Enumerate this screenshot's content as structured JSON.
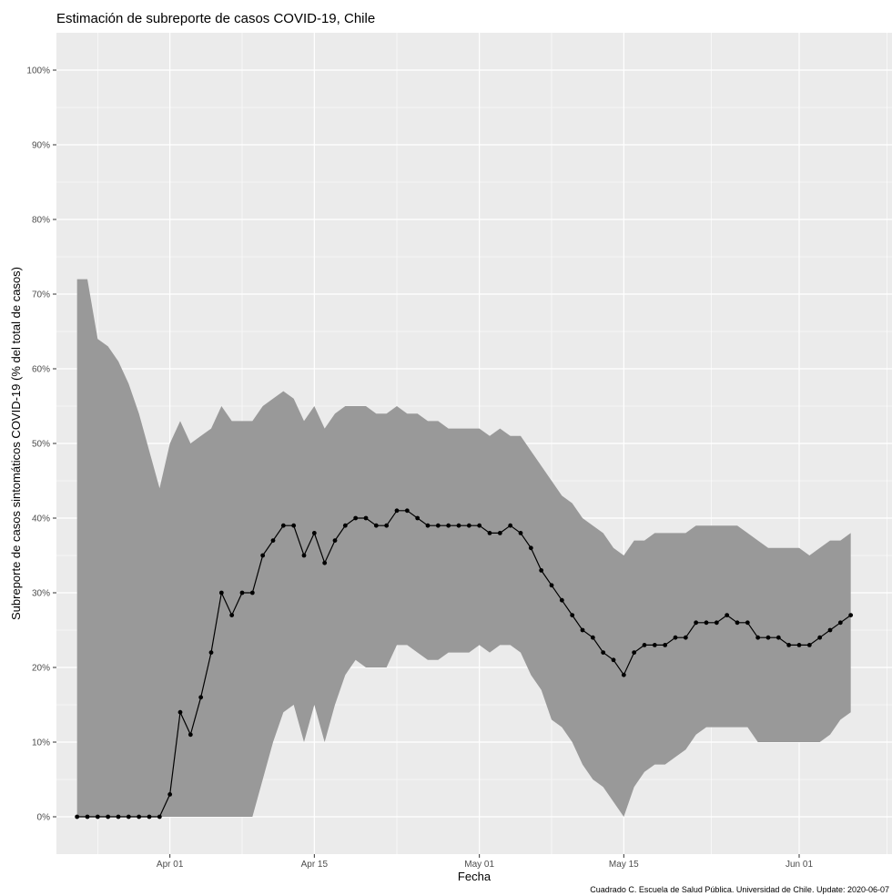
{
  "chart_data": {
    "type": "line",
    "title": "Estimación de subreporte de casos COVID-19, Chile",
    "xlabel": "Fecha",
    "ylabel": "Subreporte de casos sintomáticos COVID-19 (% del total de casos)",
    "caption": "Cuadrado C. Escuela de Salud Pública. Universidad de Chile. Update: 2020-06-07",
    "x_start": "2020-03-23",
    "x_end": "2020-06-06",
    "xlim": [
      "2020-03-21",
      "2020-06-10"
    ],
    "ylim": [
      -5,
      105
    ],
    "grid": true,
    "legend": "none",
    "colors": {
      "panel": "#ebebeb",
      "grid": "#ffffff",
      "ribbon": "#999999",
      "line": "#000000"
    },
    "x_ticks": [
      {
        "date": "2020-04-01",
        "label": "Apr 01"
      },
      {
        "date": "2020-04-15",
        "label": "Apr 15"
      },
      {
        "date": "2020-05-01",
        "label": "May 01"
      },
      {
        "date": "2020-05-15",
        "label": "May 15"
      },
      {
        "date": "2020-06-01",
        "label": "Jun 01"
      }
    ],
    "y_ticks": [
      {
        "value": 0,
        "label": "0%"
      },
      {
        "value": 10,
        "label": "10%"
      },
      {
        "value": 20,
        "label": "20%"
      },
      {
        "value": 30,
        "label": "30%"
      },
      {
        "value": 40,
        "label": "40%"
      },
      {
        "value": 50,
        "label": "50%"
      },
      {
        "value": 60,
        "label": "60%"
      },
      {
        "value": 70,
        "label": "70%"
      },
      {
        "value": 80,
        "label": "80%"
      },
      {
        "value": 90,
        "label": "90%"
      },
      {
        "value": 100,
        "label": "100%"
      }
    ],
    "series": [
      {
        "values": [
          0,
          0,
          0,
          0,
          0,
          0,
          0,
          0,
          0,
          3,
          14,
          11,
          16,
          22,
          30,
          27,
          30,
          30,
          35,
          37,
          39,
          39,
          35,
          38,
          34,
          37,
          39,
          40,
          40,
          39,
          39,
          41,
          41,
          40,
          39,
          39,
          39,
          39,
          39,
          39,
          38,
          38,
          39,
          38,
          36,
          33,
          31,
          29,
          27,
          25,
          24,
          22,
          21,
          19,
          22,
          23,
          23,
          23,
          24,
          24,
          26,
          26,
          26,
          27,
          26,
          26,
          24,
          24,
          24,
          23,
          23,
          23,
          24,
          25,
          26,
          27
        ]
      }
    ],
    "ribbon": {
      "upper": [
        72,
        72,
        64,
        63,
        61,
        58,
        54,
        49,
        44,
        50,
        53,
        50,
        51,
        52,
        55,
        53,
        53,
        53,
        55,
        56,
        57,
        56,
        53,
        55,
        52,
        54,
        55,
        55,
        55,
        54,
        54,
        55,
        54,
        54,
        53,
        53,
        52,
        52,
        52,
        52,
        51,
        52,
        51,
        51,
        49,
        47,
        45,
        43,
        42,
        40,
        39,
        38,
        36,
        35,
        37,
        37,
        38,
        38,
        38,
        38,
        39,
        39,
        39,
        39,
        39,
        38,
        37,
        36,
        36,
        36,
        36,
        35,
        36,
        37,
        37,
        38
      ],
      "lower": [
        0,
        0,
        0,
        0,
        0,
        0,
        0,
        0,
        0,
        0,
        0,
        0,
        0,
        0,
        0,
        0,
        0,
        0,
        5,
        10,
        14,
        15,
        10,
        15,
        10,
        15,
        19,
        21,
        20,
        20,
        20,
        23,
        23,
        22,
        21,
        21,
        22,
        22,
        22,
        23,
        22,
        23,
        23,
        22,
        19,
        17,
        13,
        12,
        10,
        7,
        5,
        4,
        2,
        0,
        4,
        6,
        7,
        7,
        8,
        9,
        11,
        12,
        12,
        12,
        12,
        12,
        10,
        10,
        10,
        10,
        10,
        10,
        10,
        11,
        13,
        14
      ]
    }
  }
}
